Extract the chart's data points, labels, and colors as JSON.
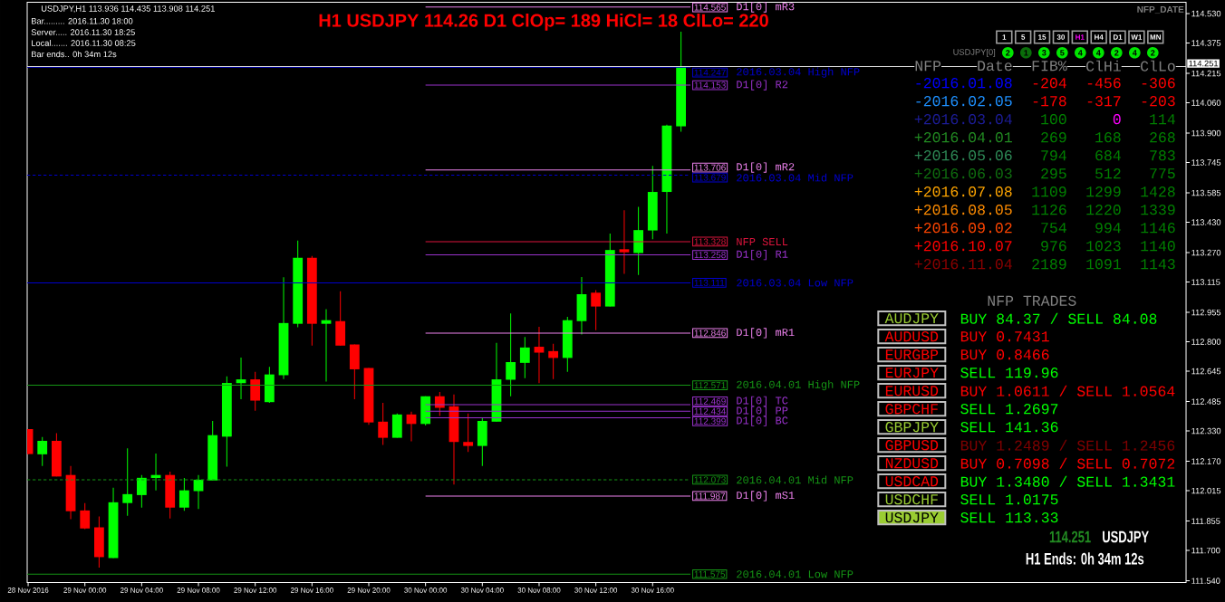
{
  "chart_data": {
    "type": "candlestick",
    "title": "H1 USDJPY 114.26 D1 ClOp= 189 HiCl= 18 ClLo= 220",
    "x": [
      "2016-11-28T20:00",
      "2016-11-28T21:00",
      "2016-11-28T22:00",
      "2016-11-28T23:00",
      "2016-11-29T00:00",
      "2016-11-29T01:00",
      "2016-11-29T02:00",
      "2016-11-29T03:00",
      "2016-11-29T04:00",
      "2016-11-29T05:00",
      "2016-11-29T06:00",
      "2016-11-29T07:00",
      "2016-11-29T08:00",
      "2016-11-29T09:00",
      "2016-11-29T10:00",
      "2016-11-29T11:00",
      "2016-11-29T12:00",
      "2016-11-29T13:00",
      "2016-11-29T14:00",
      "2016-11-29T15:00",
      "2016-11-29T16:00",
      "2016-11-29T17:00",
      "2016-11-29T18:00",
      "2016-11-29T19:00",
      "2016-11-29T20:00",
      "2016-11-29T21:00",
      "2016-11-29T22:00",
      "2016-11-29T23:00",
      "2016-11-30T00:00",
      "2016-11-30T01:00",
      "2016-11-30T02:00",
      "2016-11-30T03:00",
      "2016-11-30T04:00",
      "2016-11-30T05:00",
      "2016-11-30T06:00",
      "2016-11-30T07:00",
      "2016-11-30T08:00",
      "2016-11-30T09:00",
      "2016-11-30T10:00",
      "2016-11-30T11:00",
      "2016-11-30T12:00",
      "2016-11-30T13:00",
      "2016-11-30T14:00",
      "2016-11-30T15:00",
      "2016-11-30T16:00",
      "2016-11-30T17:00",
      "2016-11-30T18:00"
    ],
    "ohlc": [
      [
        112.34,
        112.34,
        112.207,
        112.207
      ],
      [
        112.207,
        112.298,
        112.146,
        112.278
      ],
      [
        112.278,
        112.318,
        112.09,
        112.09
      ],
      [
        112.098,
        112.146,
        111.865,
        111.907
      ],
      [
        111.911,
        111.95,
        111.812,
        111.816
      ],
      [
        111.822,
        111.879,
        111.61,
        111.665
      ],
      [
        111.66,
        112.031,
        111.66,
        111.954
      ],
      [
        111.95,
        112.238,
        111.883,
        111.997
      ],
      [
        111.992,
        112.098,
        111.926,
        112.083
      ],
      [
        112.082,
        112.211,
        112.017,
        112.098
      ],
      [
        112.098,
        112.116,
        111.869,
        111.926
      ],
      [
        111.926,
        112.082,
        111.909,
        112.017
      ],
      [
        112.013,
        112.098,
        111.919,
        112.073
      ],
      [
        112.069,
        112.383,
        112.069,
        112.308
      ],
      [
        112.3,
        112.618,
        112.142,
        112.583
      ],
      [
        112.582,
        112.717,
        112.497,
        112.602
      ],
      [
        112.602,
        112.642,
        112.436,
        112.49
      ],
      [
        112.482,
        112.668,
        112.478,
        112.628
      ],
      [
        112.624,
        113.14,
        112.604,
        112.899
      ],
      [
        112.895,
        113.334,
        112.877,
        113.243
      ],
      [
        113.243,
        113.253,
        112.78,
        112.895
      ],
      [
        112.895,
        112.972,
        112.59,
        112.914
      ],
      [
        112.909,
        113.067,
        112.78,
        112.78
      ],
      [
        112.786,
        112.786,
        112.497,
        112.655
      ],
      [
        112.662,
        112.662,
        112.363,
        112.375
      ],
      [
        112.379,
        112.478,
        112.256,
        112.294
      ],
      [
        112.294,
        112.422,
        112.294,
        112.417
      ],
      [
        112.417,
        112.432,
        112.276,
        112.367
      ],
      [
        112.367,
        112.513,
        112.359,
        112.513
      ],
      [
        112.513,
        112.535,
        112.409,
        112.452
      ],
      [
        112.46,
        112.523,
        112.047,
        112.272
      ],
      [
        112.272,
        112.422,
        112.219,
        112.251
      ],
      [
        112.251,
        112.397,
        112.146,
        112.383
      ],
      [
        112.379,
        112.794,
        112.379,
        112.602
      ],
      [
        112.6,
        112.95,
        112.513,
        112.693
      ],
      [
        112.689,
        112.826,
        112.608,
        112.77
      ],
      [
        112.774,
        112.879,
        112.582,
        112.743
      ],
      [
        112.751,
        112.79,
        112.604,
        112.715
      ],
      [
        112.715,
        112.932,
        112.642,
        112.914
      ],
      [
        112.909,
        113.142,
        112.839,
        113.051
      ],
      [
        113.059,
        113.073,
        112.861,
        112.986
      ],
      [
        112.986,
        113.371,
        112.986,
        113.284
      ],
      [
        113.288,
        113.494,
        113.158,
        113.272
      ],
      [
        113.268,
        113.512,
        113.152,
        113.389
      ],
      [
        113.387,
        113.727,
        113.341,
        113.59
      ],
      [
        113.59,
        113.944,
        113.371,
        113.94
      ],
      [
        113.936,
        114.435,
        113.908,
        114.251
      ]
    ],
    "colors": [
      "#ff0000",
      "#00ff00",
      "#ff0000",
      "#ff0000",
      "#ff0000",
      "#ff0000",
      "#00ff00",
      "#00ff00",
      "#00ff00",
      "#00ff00",
      "#ff0000",
      "#00ff00",
      "#00ff00",
      "#00ff00",
      "#00ff00",
      "#00ff00",
      "#ff0000",
      "#00ff00",
      "#00ff00",
      "#00ff00",
      "#ff0000",
      "#00ff00",
      "#ff0000",
      "#ff0000",
      "#ff0000",
      "#ff0000",
      "#00ff00",
      "#ff0000",
      "#00ff00",
      "#ff0000",
      "#ff0000",
      "#ff0000",
      "#00ff00",
      "#00ff00",
      "#00ff00",
      "#00ff00",
      "#ff0000",
      "#ff0000",
      "#00ff00",
      "#00ff00",
      "#ff0000",
      "#00ff00",
      "#ff0000",
      "#00ff00",
      "#00ff00",
      "#00ff00",
      "#00ff00"
    ],
    "series": [
      {
        "type": "line",
        "name": "D1[0] mR3",
        "color": "#ee82ee",
        "x": [
          "2016-11-30T00:00",
          "2016-11-30T18:40"
        ],
        "values": [
          114.565,
          114.565
        ],
        "value_labels": [
          null,
          "114.565"
        ]
      },
      {
        "type": "line",
        "name": "2016.03.04 High NFP",
        "color": "#0000cd",
        "x": [
          "2016-11-28T19:56",
          "2016-11-30T18:40"
        ],
        "values": [
          114.247,
          114.247
        ],
        "value_labels": [
          null,
          "114.247"
        ]
      },
      {
        "type": "line",
        "name": "D1[0] R2",
        "color": "#9932cc",
        "x": [
          "2016-11-30T00:00",
          "2016-11-30T18:40"
        ],
        "values": [
          114.153,
          114.153
        ],
        "value_labels": [
          null,
          "114.153"
        ]
      },
      {
        "type": "line",
        "name": "D1[0] mR2",
        "color": "#ee82ee",
        "x": [
          "2016-11-30T00:00",
          "2016-11-30T18:40"
        ],
        "values": [
          113.706,
          113.706
        ],
        "value_labels": [
          null,
          "113.706"
        ]
      },
      {
        "type": "line",
        "name": "2016.03.04 Mid NFP",
        "color": "#0000cd",
        "line_style": "dashed",
        "x": [
          "2016-11-28T19:56",
          "2016-11-30T18:40"
        ],
        "values": [
          113.679,
          113.679
        ],
        "value_labels": [
          null,
          "113.679"
        ]
      },
      {
        "type": "line",
        "name": "NFP SELL",
        "color": "#dc143c",
        "x": [
          "2016-11-30T00:00",
          "2016-11-30T18:40"
        ],
        "values": [
          113.328,
          113.328
        ],
        "value_labels": [
          null,
          "113.328"
        ]
      },
      {
        "type": "line",
        "name": "D1[0] R1",
        "color": "#9932cc",
        "x": [
          "2016-11-30T00:00",
          "2016-11-30T18:40"
        ],
        "values": [
          113.258,
          113.258
        ],
        "value_labels": [
          null,
          "113.258"
        ]
      },
      {
        "type": "line",
        "name": "2016.03.04 Low NFP",
        "color": "#0000cd",
        "x": [
          "2016-11-28T19:56",
          "2016-11-30T18:40"
        ],
        "values": [
          113.111,
          113.111
        ],
        "value_labels": [
          null,
          "113.111"
        ]
      },
      {
        "type": "line",
        "name": "D1[0] mR1",
        "color": "#ee82ee",
        "x": [
          "2016-11-30T00:00",
          "2016-11-30T18:40"
        ],
        "values": [
          112.846,
          112.846
        ],
        "value_labels": [
          null,
          "112.846"
        ]
      },
      {
        "type": "line",
        "name": "2016.04.01 High NFP",
        "color": "#159515",
        "x": [
          "2016-11-28T19:56",
          "2016-11-30T18:40"
        ],
        "values": [
          112.571,
          112.571
        ],
        "value_labels": [
          null,
          "112.571"
        ]
      },
      {
        "type": "line",
        "name": "D1[0] TC",
        "color": "#9932cc",
        "x": [
          "2016-11-30T00:00",
          "2016-11-30T18:40"
        ],
        "values": [
          112.469,
          112.469
        ],
        "value_labels": [
          null,
          "112.469"
        ]
      },
      {
        "type": "line",
        "name": "D1[0] PP",
        "color": "#9932cc",
        "x": [
          "2016-11-30T00:00",
          "2016-11-30T18:40"
        ],
        "values": [
          112.434,
          112.434
        ],
        "value_labels": [
          null,
          "112.434"
        ]
      },
      {
        "type": "line",
        "name": "D1[0] BC",
        "color": "#9932cc",
        "x": [
          "2016-11-30T00:00",
          "2016-11-30T18:40"
        ],
        "values": [
          112.399,
          112.399
        ],
        "value_labels": [
          null,
          "112.399"
        ]
      },
      {
        "type": "line",
        "name": "2016.04.01 Mid NFP",
        "color": "#159515",
        "line_style": "dashed",
        "x": [
          "2016-11-28T19:56",
          "2016-11-30T18:40"
        ],
        "values": [
          112.073,
          112.073
        ],
        "value_labels": [
          null,
          "112.073"
        ]
      },
      {
        "type": "line",
        "name": "D1[0] mS1",
        "color": "#ee82ee",
        "x": [
          "2016-11-30T00:00",
          "2016-11-30T18:40"
        ],
        "values": [
          111.987,
          111.987
        ],
        "value_labels": [
          null,
          "111.987"
        ]
      },
      {
        "type": "line",
        "name": "2016.04.01 Low NFP",
        "color": "#159515",
        "x": [
          "2016-11-28T19:56",
          "2016-11-30T18:40"
        ],
        "values": [
          111.575,
          111.575
        ],
        "value_labels": [
          null,
          "111.575"
        ]
      }
    ],
    "ref_lines": [
      {
        "axis": "y",
        "value": 114.251,
        "label": "114.251",
        "color": "#dcdcdc"
      }
    ],
    "legend": "right",
    "xlim": [
      "2016-11-28T19:56",
      "2016-12-02T05:35"
    ],
    "ylim": [
      111.531,
      114.59
    ],
    "xticks": [
      {
        "value": "2016-11-28T20:00",
        "label": "28 Nov 2016"
      },
      {
        "value": "2016-11-29T00:00",
        "label": "29 Nov 00:00"
      },
      {
        "value": "2016-11-29T04:00",
        "label": "29 Nov 04:00"
      },
      {
        "value": "2016-11-29T08:00",
        "label": "29 Nov 08:00"
      },
      {
        "value": "2016-11-29T12:00",
        "label": "29 Nov 12:00"
      },
      {
        "value": "2016-11-29T16:00",
        "label": "29 Nov 16:00"
      },
      {
        "value": "2016-11-29T20:00",
        "label": "29 Nov 20:00"
      },
      {
        "value": "2016-11-30T00:00",
        "label": "30 Nov 00:00"
      },
      {
        "value": "2016-11-30T04:00",
        "label": "30 Nov 04:00"
      },
      {
        "value": "2016-11-30T08:00",
        "label": "30 Nov 08:00"
      },
      {
        "value": "2016-11-30T12:00",
        "label": "30 Nov 12:00"
      },
      {
        "value": "2016-11-30T16:00",
        "label": "30 Nov 16:00"
      }
    ],
    "yticks": [
      {
        "value": 114.53,
        "label": "114.530"
      },
      114.375,
      114.215,
      {
        "value": 114.06,
        "label": "114.060"
      },
      {
        "value": 113.9,
        "label": "113.900"
      },
      113.745,
      113.585,
      {
        "value": 113.43,
        "label": "113.430"
      },
      {
        "value": 113.27,
        "label": "113.270"
      },
      113.115,
      112.955,
      {
        "value": 112.8,
        "label": "112.800"
      },
      112.645,
      112.485,
      {
        "value": 112.33,
        "label": "112.330"
      },
      {
        "value": 112.17,
        "label": "112.170"
      },
      112.015,
      111.855,
      {
        "value": 111.7,
        "label": "111.700"
      },
      {
        "value": 111.54,
        "label": "111.540"
      }
    ],
    "annotations": [
      "USDJPY,H1 113.936 114.435 113.908 114.251",
      "Bar......... 2016.11.30 18:00",
      "Server..... 2016.11.30 18:25",
      "Local....... 2016.11.30 08:25",
      "Bar ends.. 0h 34m 12s",
      "NFP_DATE",
      "1",
      "5",
      "15",
      "30",
      "H1",
      "H4",
      "D1",
      "W1",
      "MN",
      "USDJPY[0]",
      "2",
      "1",
      "3",
      "5",
      "4",
      "4",
      "2",
      "4",
      "2",
      "NFP",
      "Date",
      "FIB%",
      "ClHi",
      "ClLo",
      "-2016.01.08",
      "-204",
      "-456",
      "-306",
      "-2016.02.05",
      "-178",
      "-317",
      "-203",
      "+2016.03.04",
      "100",
      "0",
      "114",
      "+2016.04.01",
      "269",
      "168",
      "268",
      "+2016.05.06",
      "794",
      "684",
      "783",
      "+2016.06.03",
      "295",
      "512",
      "775",
      "+2016.07.08",
      "1109",
      "1299",
      "1428",
      "+2016.08.05",
      "1126",
      "1220",
      "1339",
      "+2016.09.02",
      "754",
      "994",
      "1146",
      "+2016.10.07",
      "976",
      "1023",
      "1140",
      "+2016.11.04",
      "2189",
      "1091",
      "1143",
      "NFP TRADES",
      "AUDJPY",
      "BUY 84.37 / SELL 84.08",
      "AUDUSD",
      "BUY 0.7431",
      "EURGBP",
      "BUY 0.8466",
      "EURJPY",
      "SELL 119.96",
      "EURUSD",
      "BUY 1.0611 / SELL 1.0564",
      "GBPCHF",
      "SELL 1.2697",
      "GBPJPY",
      "SELL 141.36",
      "GBPUSD",
      "BUY 1.2489 / SELL 1.2456",
      "NZDUSD",
      "BUY 0.7098 / SELL 0.7072",
      "USDCAD",
      "BUY 1.3480 / SELL 1.3431",
      "USDCHF",
      "SELL 1.0175",
      "USDJPY",
      "SELL 113.33",
      "114.251",
      "USDJPY",
      "H1 Ends: 0h 34m 12s"
    ]
  }
}
